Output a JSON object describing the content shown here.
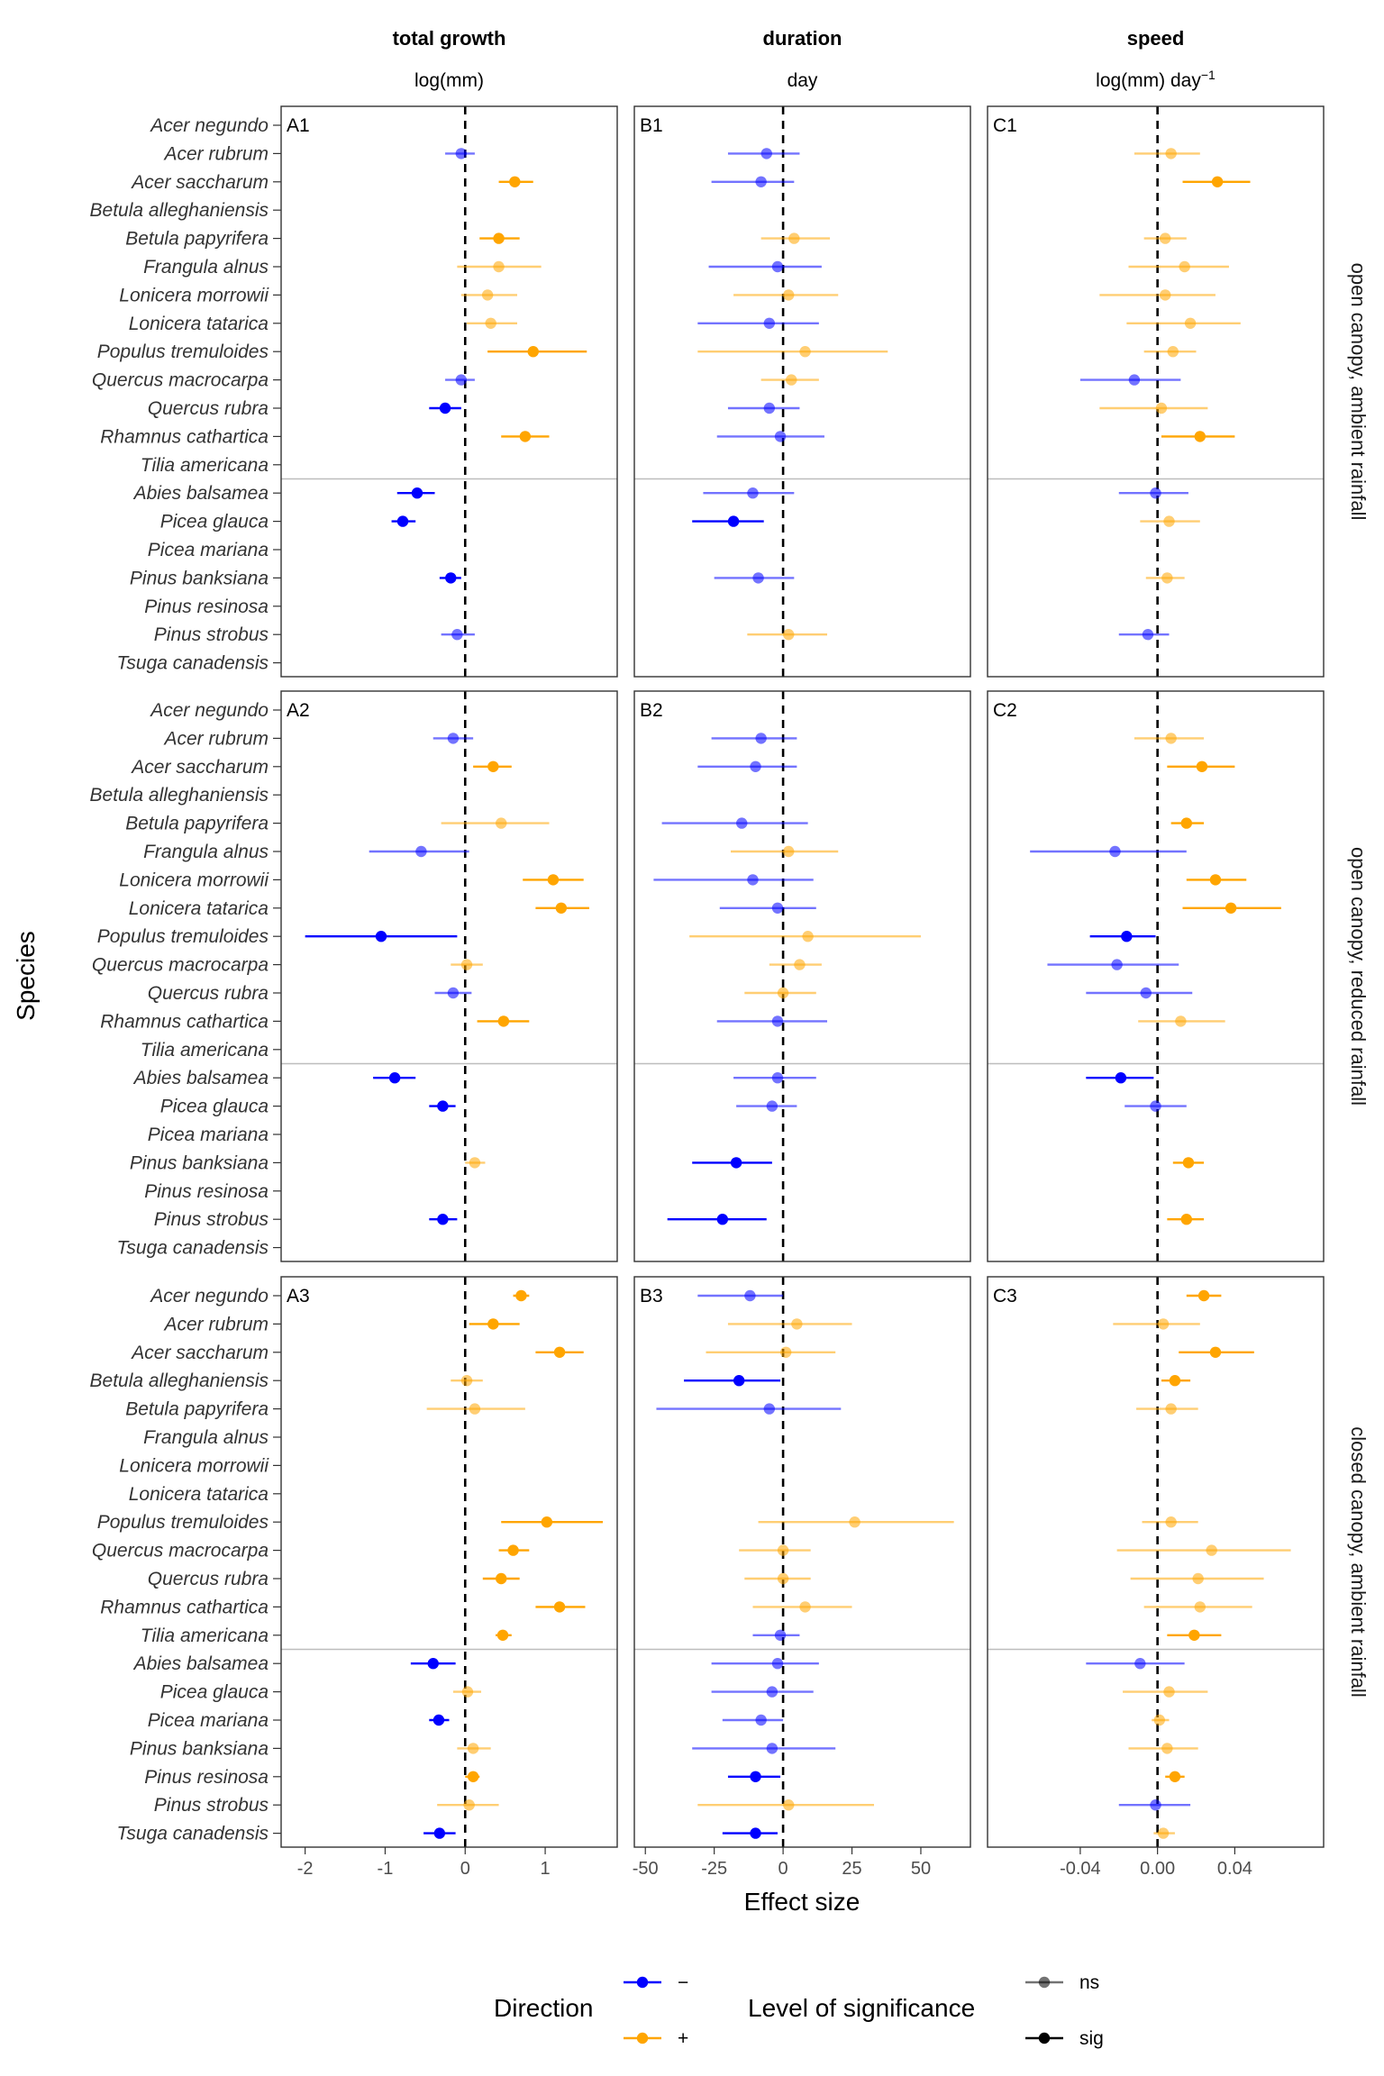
{
  "chart_data": {
    "type": "scatter",
    "subtype": "forest-plot",
    "columns": [
      {
        "title": "total growth",
        "unit": "log(mm)",
        "unit_sup": "",
        "xlim": [
          -2.3,
          1.9
        ],
        "ticks": [
          -2,
          -1,
          0,
          1
        ],
        "tick_labels": [
          "-2",
          "-1",
          "0",
          "1"
        ]
      },
      {
        "title": "duration",
        "unit": "day",
        "unit_sup": "",
        "xlim": [
          -54,
          68
        ],
        "ticks": [
          -50,
          -25,
          0,
          25,
          50
        ],
        "tick_labels": [
          "-50",
          "-25",
          "0",
          "25",
          "50"
        ]
      },
      {
        "title": "speed",
        "unit": "log(mm) day",
        "unit_sup": "−1",
        "xlim": [
          -0.088,
          0.086
        ],
        "ticks": [
          -0.04,
          0,
          0.04
        ],
        "tick_labels": [
          "-0.04",
          "0.00",
          "0.04"
        ]
      }
    ],
    "rows": [
      {
        "strip": "open canopy, ambient rainfall",
        "panels": [
          "A1",
          "B1",
          "C1"
        ]
      },
      {
        "strip": "open canopy, reduced rainfall",
        "panels": [
          "A2",
          "B2",
          "C2"
        ]
      },
      {
        "strip": "closed canopy, ambient rainfall",
        "panels": [
          "A3",
          "B3",
          "C3"
        ]
      }
    ],
    "species": [
      "Acer negundo",
      "Acer rubrum",
      "Acer saccharum",
      "Betula alleghaniensis",
      "Betula papyrifera",
      "Frangula alnus",
      "Lonicera morrowii",
      "Lonicera tatarica",
      "Populus tremuloides",
      "Quercus macrocarpa",
      "Quercus rubra",
      "Rhamnus cathartica",
      "Tilia americana",
      "Abies balsamea",
      "Picea glauca",
      "Picea mariana",
      "Pinus banksiana",
      "Pinus resinosa",
      "Pinus strobus",
      "Tsuga canadensis"
    ],
    "group_separator_after": "Tilia americana",
    "xlabel": "Effect size",
    "ylabel": "Species",
    "reference_line": 0,
    "colors": {
      "neg": "#0000ff",
      "pos": "#ffa500"
    },
    "legend": {
      "position": "bottom",
      "direction_title": "Direction",
      "direction_items": [
        {
          "label": "−",
          "color": "#0000ff"
        },
        {
          "label": "+",
          "color": "#ffa500"
        }
      ],
      "significance_title": "Level of significance",
      "significance_items": [
        {
          "label": "ns",
          "alpha": 0.55
        },
        {
          "label": "sig",
          "alpha": 1
        }
      ]
    },
    "estimates": {
      "A1": [
        null,
        [
          -0.05,
          -0.25,
          0.12,
          "ns"
        ],
        [
          0.62,
          0.42,
          0.85,
          "sig"
        ],
        null,
        [
          0.42,
          0.18,
          0.68,
          "sig"
        ],
        [
          0.42,
          -0.1,
          0.95,
          "ns"
        ],
        [
          0.28,
          -0.05,
          0.65,
          "ns"
        ],
        [
          0.32,
          0.02,
          0.65,
          "ns"
        ],
        [
          0.85,
          0.28,
          1.52,
          "sig"
        ],
        [
          -0.05,
          -0.25,
          0.12,
          "ns"
        ],
        [
          -0.25,
          -0.45,
          -0.05,
          "sig"
        ],
        [
          0.75,
          0.45,
          1.05,
          "sig"
        ],
        null,
        [
          -0.6,
          -0.85,
          -0.38,
          "sig"
        ],
        [
          -0.78,
          -0.92,
          -0.62,
          "sig"
        ],
        null,
        [
          -0.18,
          -0.32,
          -0.05,
          "sig"
        ],
        null,
        [
          -0.1,
          -0.3,
          0.12,
          "ns"
        ],
        null
      ],
      "A2": [
        null,
        [
          -0.15,
          -0.4,
          0.1,
          "ns"
        ],
        [
          0.35,
          0.1,
          0.58,
          "sig"
        ],
        null,
        [
          0.45,
          -0.3,
          1.05,
          "ns"
        ],
        [
          -0.55,
          -1.2,
          0.05,
          "ns"
        ],
        [
          1.1,
          0.72,
          1.48,
          "sig"
        ],
        [
          1.2,
          0.88,
          1.55,
          "sig"
        ],
        [
          -1.05,
          -2.0,
          -0.1,
          "sig"
        ],
        [
          0.02,
          -0.18,
          0.22,
          "ns"
        ],
        [
          -0.15,
          -0.38,
          0.08,
          "ns"
        ],
        [
          0.48,
          0.15,
          0.8,
          "sig"
        ],
        null,
        [
          -0.88,
          -1.15,
          -0.62,
          "sig"
        ],
        [
          -0.28,
          -0.45,
          -0.12,
          "sig"
        ],
        null,
        [
          0.12,
          0.0,
          0.25,
          "ns"
        ],
        null,
        [
          -0.28,
          -0.45,
          -0.1,
          "sig"
        ],
        null
      ],
      "A3": [
        [
          0.7,
          0.6,
          0.8,
          "sig"
        ],
        [
          0.35,
          0.05,
          0.68,
          "sig"
        ],
        [
          1.18,
          0.88,
          1.48,
          "sig"
        ],
        [
          0.02,
          -0.18,
          0.22,
          "ns"
        ],
        [
          0.12,
          -0.48,
          0.75,
          "ns"
        ],
        null,
        null,
        null,
        [
          1.02,
          0.45,
          1.72,
          "sig"
        ],
        [
          0.6,
          0.42,
          0.8,
          "sig"
        ],
        [
          0.45,
          0.22,
          0.68,
          "sig"
        ],
        [
          1.18,
          0.88,
          1.5,
          "sig"
        ],
        [
          0.47,
          0.38,
          0.58,
          "sig"
        ],
        [
          -0.4,
          -0.68,
          -0.12,
          "sig"
        ],
        [
          0.03,
          -0.15,
          0.2,
          "ns"
        ],
        [
          -0.33,
          -0.45,
          -0.2,
          "sig"
        ],
        [
          0.1,
          -0.1,
          0.32,
          "ns"
        ],
        [
          0.1,
          0.0,
          0.18,
          "sig"
        ],
        [
          0.05,
          -0.35,
          0.42,
          "ns"
        ],
        [
          -0.32,
          -0.52,
          -0.12,
          "sig"
        ]
      ],
      "B1": [
        null,
        [
          -6,
          -20,
          6,
          "ns"
        ],
        [
          -8,
          -26,
          4,
          "ns"
        ],
        null,
        [
          4,
          -8,
          17,
          "ns"
        ],
        [
          -2,
          -27,
          14,
          "ns"
        ],
        [
          2,
          -18,
          20,
          "ns"
        ],
        [
          -5,
          -31,
          13,
          "ns"
        ],
        [
          8,
          -31,
          38,
          "ns"
        ],
        [
          3,
          -8,
          13,
          "ns"
        ],
        [
          -5,
          -20,
          6,
          "ns"
        ],
        [
          -1,
          -24,
          15,
          "ns"
        ],
        null,
        [
          -11,
          -29,
          4,
          "ns"
        ],
        [
          -18,
          -33,
          -7,
          "sig"
        ],
        null,
        [
          -9,
          -25,
          4,
          "ns"
        ],
        null,
        [
          2,
          -13,
          16,
          "ns"
        ],
        null
      ],
      "B2": [
        null,
        [
          -8,
          -26,
          5,
          "ns"
        ],
        [
          -10,
          -31,
          5,
          "ns"
        ],
        null,
        [
          -15,
          -44,
          9,
          "ns"
        ],
        [
          2,
          -19,
          20,
          "ns"
        ],
        [
          -11,
          -47,
          11,
          "ns"
        ],
        [
          -2,
          -23,
          12,
          "ns"
        ],
        [
          9,
          -34,
          50,
          "ns"
        ],
        [
          6,
          -5,
          14,
          "ns"
        ],
        [
          0,
          -14,
          12,
          "ns"
        ],
        [
          -2,
          -24,
          16,
          "ns"
        ],
        null,
        [
          -2,
          -18,
          12,
          "ns"
        ],
        [
          -4,
          -17,
          5,
          "ns"
        ],
        null,
        [
          -17,
          -33,
          -4,
          "sig"
        ],
        null,
        [
          -22,
          -42,
          -6,
          "sig"
        ],
        null
      ],
      "B3": [
        [
          -12,
          -31,
          0,
          "ns"
        ],
        [
          5,
          -20,
          25,
          "ns"
        ],
        [
          1,
          -28,
          19,
          "ns"
        ],
        [
          -16,
          -36,
          -1,
          "sig"
        ],
        [
          -5,
          -46,
          21,
          "ns"
        ],
        null,
        null,
        null,
        [
          26,
          -9,
          62,
          "ns"
        ],
        [
          0,
          -16,
          10,
          "ns"
        ],
        [
          0,
          -14,
          10,
          "ns"
        ],
        [
          8,
          -11,
          25,
          "ns"
        ],
        [
          -1,
          -11,
          6,
          "ns"
        ],
        [
          -2,
          -26,
          13,
          "ns"
        ],
        [
          -4,
          -26,
          11,
          "ns"
        ],
        [
          -8,
          -22,
          0,
          "ns"
        ],
        [
          -4,
          -33,
          19,
          "ns"
        ],
        [
          -10,
          -20,
          -1,
          "sig"
        ],
        [
          2,
          -31,
          33,
          "ns"
        ],
        [
          -10,
          -22,
          -2,
          "sig"
        ]
      ],
      "C1": [
        null,
        [
          0.007,
          -0.012,
          0.022,
          "ns"
        ],
        [
          0.031,
          0.013,
          0.048,
          "sig"
        ],
        null,
        [
          0.004,
          -0.007,
          0.015,
          "ns"
        ],
        [
          0.014,
          -0.015,
          0.037,
          "ns"
        ],
        [
          0.004,
          -0.03,
          0.03,
          "ns"
        ],
        [
          0.017,
          -0.016,
          0.043,
          "ns"
        ],
        [
          0.008,
          -0.007,
          0.02,
          "ns"
        ],
        [
          -0.012,
          -0.04,
          0.012,
          "ns"
        ],
        [
          0.002,
          -0.03,
          0.026,
          "ns"
        ],
        [
          0.022,
          0.002,
          0.04,
          "sig"
        ],
        null,
        [
          -0.001,
          -0.02,
          0.016,
          "ns"
        ],
        [
          0.006,
          -0.009,
          0.022,
          "ns"
        ],
        null,
        [
          0.005,
          -0.006,
          0.014,
          "ns"
        ],
        null,
        [
          -0.005,
          -0.02,
          0.006,
          "ns"
        ],
        null
      ],
      "C2": [
        null,
        [
          0.007,
          -0.012,
          0.024,
          "ns"
        ],
        [
          0.023,
          0.005,
          0.04,
          "sig"
        ],
        null,
        [
          0.015,
          0.007,
          0.024,
          "sig"
        ],
        [
          -0.022,
          -0.066,
          0.015,
          "ns"
        ],
        [
          0.03,
          0.015,
          0.046,
          "sig"
        ],
        [
          0.038,
          0.013,
          0.064,
          "sig"
        ],
        [
          -0.016,
          -0.035,
          -0.001,
          "sig"
        ],
        [
          -0.021,
          -0.057,
          0.011,
          "ns"
        ],
        [
          -0.006,
          -0.037,
          0.018,
          "ns"
        ],
        [
          0.012,
          -0.01,
          0.035,
          "ns"
        ],
        null,
        [
          -0.019,
          -0.037,
          -0.002,
          "sig"
        ],
        [
          -0.001,
          -0.017,
          0.015,
          "ns"
        ],
        null,
        [
          0.016,
          0.008,
          0.024,
          "sig"
        ],
        null,
        [
          0.015,
          0.005,
          0.024,
          "sig"
        ],
        null
      ],
      "C3": [
        [
          0.024,
          0.015,
          0.033,
          "sig"
        ],
        [
          0.003,
          -0.023,
          0.022,
          "ns"
        ],
        [
          0.03,
          0.011,
          0.05,
          "sig"
        ],
        [
          0.009,
          0.002,
          0.017,
          "sig"
        ],
        [
          0.007,
          -0.011,
          0.021,
          "ns"
        ],
        null,
        null,
        null,
        [
          0.007,
          -0.008,
          0.021,
          "ns"
        ],
        [
          0.028,
          -0.021,
          0.069,
          "ns"
        ],
        [
          0.021,
          -0.014,
          0.055,
          "ns"
        ],
        [
          0.022,
          -0.007,
          0.049,
          "ns"
        ],
        [
          0.019,
          0.005,
          0.033,
          "sig"
        ],
        [
          -0.009,
          -0.037,
          0.014,
          "ns"
        ],
        [
          0.006,
          -0.018,
          0.026,
          "ns"
        ],
        [
          0.001,
          -0.003,
          0.006,
          "ns"
        ],
        [
          0.005,
          -0.015,
          0.021,
          "ns"
        ],
        [
          0.009,
          0.004,
          0.014,
          "sig"
        ],
        [
          -0.001,
          -0.02,
          0.017,
          "ns"
        ],
        [
          0.003,
          -0.002,
          0.009,
          "ns"
        ]
      ]
    }
  }
}
